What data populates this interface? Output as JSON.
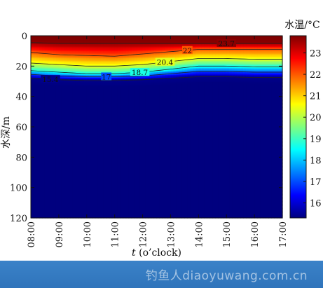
{
  "watermark": "钓鱼人diaoyuwang.com.cn",
  "chart_data": {
    "type": "heatmap",
    "title": "",
    "xlabel_italic": "t",
    "xlabel_rest": " (o’clock)",
    "ylabel": "水深/m",
    "colorbar_label": "水温/°C",
    "x_ticks": [
      "08:00",
      "09:00",
      "10:00",
      "11:00",
      "12:00",
      "13:00",
      "14:00",
      "15:00",
      "16:00",
      "17:00"
    ],
    "y_ticks": [
      0,
      20,
      40,
      60,
      80,
      100,
      120
    ],
    "xlim": [
      8,
      17
    ],
    "ylim": [
      120,
      0
    ],
    "colorbar_ticks": [
      16,
      17,
      18,
      19,
      20,
      21,
      22,
      23
    ],
    "colorbar_range": [
      15.3,
      23.8
    ],
    "colormap": [
      "#00007f",
      "#0000ff",
      "#007fff",
      "#00ffff",
      "#7fff7f",
      "#ffff00",
      "#ff7f00",
      "#ff0000",
      "#7f0000"
    ],
    "surface_temperature": 23.7,
    "deep_temperature": 15.4,
    "hours": [
      8,
      9,
      10,
      11,
      12,
      13,
      14,
      15,
      16,
      17
    ],
    "contour_depths": [
      {
        "temperature": 23.7,
        "depths": [
          4.5,
          5,
          5,
          5,
          5,
          5,
          5,
          5,
          5,
          5
        ]
      },
      {
        "temperature": 22,
        "depths": [
          11,
          12.5,
          13,
          13.5,
          12,
          10.5,
          9,
          9,
          9,
          9
        ]
      },
      {
        "temperature": 20.4,
        "depths": [
          18,
          19,
          20,
          20,
          19,
          17,
          15,
          15,
          15.5,
          15.5
        ]
      },
      {
        "temperature": 18.7,
        "depths": [
          23,
          24,
          25,
          25,
          24,
          22,
          20,
          20,
          20.5,
          20.5
        ]
      },
      {
        "temperature": 17,
        "depths": [
          25.5,
          26.5,
          27,
          27,
          26.5,
          25,
          23.5,
          23.5,
          24,
          24
        ]
      },
      {
        "temperature": 15.4,
        "depths": [
          28,
          29,
          29.5,
          29.5,
          29,
          28,
          27,
          27,
          27.5,
          27.5
        ]
      }
    ],
    "contour_labels": [
      {
        "text": "23.7",
        "time": 15.0
      },
      {
        "text": "22",
        "time": 13.6
      },
      {
        "text": "20.4",
        "time": 12.8
      },
      {
        "text": "18.7",
        "time": 11.9
      },
      {
        "text": "17",
        "time": 10.7
      },
      {
        "text": "15.4",
        "time": 8.7
      }
    ]
  }
}
